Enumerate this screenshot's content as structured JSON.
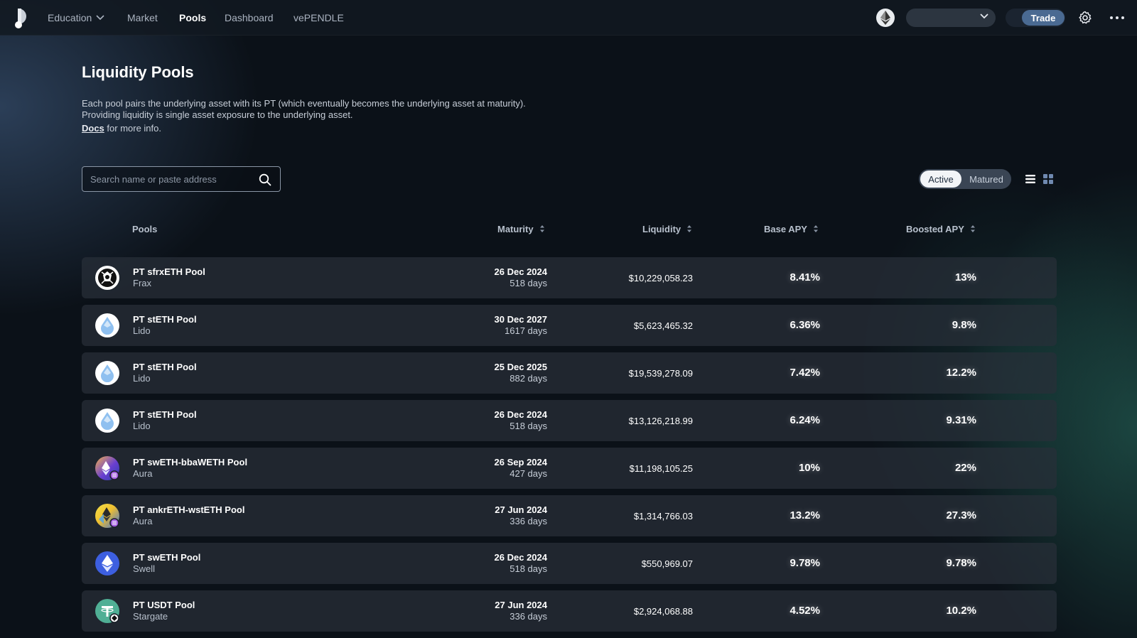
{
  "nav": {
    "items": [
      {
        "label": "Education",
        "has_dropdown": true,
        "active": false
      },
      {
        "label": "Market",
        "active": false
      },
      {
        "label": "Pools",
        "active": true
      },
      {
        "label": "Dashboard",
        "active": false
      },
      {
        "label": "vePENDLE",
        "active": false
      }
    ],
    "trade_label": "Trade"
  },
  "page": {
    "title": "Liquidity Pools",
    "desc_line1": "Each pool pairs the underlying asset with its PT (which eventually becomes the underlying asset at maturity).",
    "desc_line2": "Providing liquidity is single asset exposure to the underlying asset.",
    "docs_link": "Docs",
    "docs_suffix": " for more info."
  },
  "search": {
    "placeholder": "Search name or paste address",
    "value": ""
  },
  "status_toggle": {
    "active": "Active",
    "matured": "Matured",
    "selected": "Active"
  },
  "table": {
    "headers": {
      "pools": "Pools",
      "maturity": "Maturity",
      "liquidity": "Liquidity",
      "base_apy": "Base APY",
      "boosted_apy": "Boosted APY"
    },
    "rows": [
      {
        "name": "PT sfrxETH Pool",
        "protocol": "Frax",
        "icon": "frax-icon",
        "maturity": "26 Dec 2024",
        "days": "518 days",
        "liquidity": "$10,229,058.23",
        "base_apy": "8.41%",
        "boosted_apy": "13%"
      },
      {
        "name": "PT stETH Pool",
        "protocol": "Lido",
        "icon": "lido-icon",
        "maturity": "30 Dec 2027",
        "days": "1617 days",
        "liquidity": "$5,623,465.32",
        "base_apy": "6.36%",
        "boosted_apy": "9.8%"
      },
      {
        "name": "PT stETH Pool",
        "protocol": "Lido",
        "icon": "lido-icon",
        "maturity": "25 Dec 2025",
        "days": "882 days",
        "liquidity": "$19,539,278.09",
        "base_apy": "7.42%",
        "boosted_apy": "12.2%"
      },
      {
        "name": "PT stETH Pool",
        "protocol": "Lido",
        "icon": "lido-icon",
        "maturity": "26 Dec 2024",
        "days": "518 days",
        "liquidity": "$13,126,218.99",
        "base_apy": "6.24%",
        "boosted_apy": "9.31%"
      },
      {
        "name": "PT swETH-bbaWETH Pool",
        "protocol": "Aura",
        "icon": "aura-sweth-icon",
        "maturity": "26 Sep 2024",
        "days": "427 days",
        "liquidity": "$11,198,105.25",
        "base_apy": "10%",
        "boosted_apy": "22%"
      },
      {
        "name": "PT ankrETH-wstETH Pool",
        "protocol": "Aura",
        "icon": "aura-ankr-icon",
        "maturity": "27 Jun 2024",
        "days": "336 days",
        "liquidity": "$1,314,766.03",
        "base_apy": "13.2%",
        "boosted_apy": "27.3%"
      },
      {
        "name": "PT swETH Pool",
        "protocol": "Swell",
        "icon": "swell-icon",
        "maturity": "26 Dec 2024",
        "days": "518 days",
        "liquidity": "$550,969.07",
        "base_apy": "9.78%",
        "boosted_apy": "9.78%"
      },
      {
        "name": "PT USDT Pool",
        "protocol": "Stargate",
        "icon": "usdt-icon",
        "maturity": "27 Jun 2024",
        "days": "336 days",
        "liquidity": "$2,924,068.88",
        "base_apy": "4.52%",
        "boosted_apy": "10.2%"
      }
    ]
  },
  "colors": {
    "background": "#0b1118",
    "row_bg": "#282f39",
    "trade_button": "#4a6a92",
    "toggle_active_bg": "#f2f4f7"
  }
}
